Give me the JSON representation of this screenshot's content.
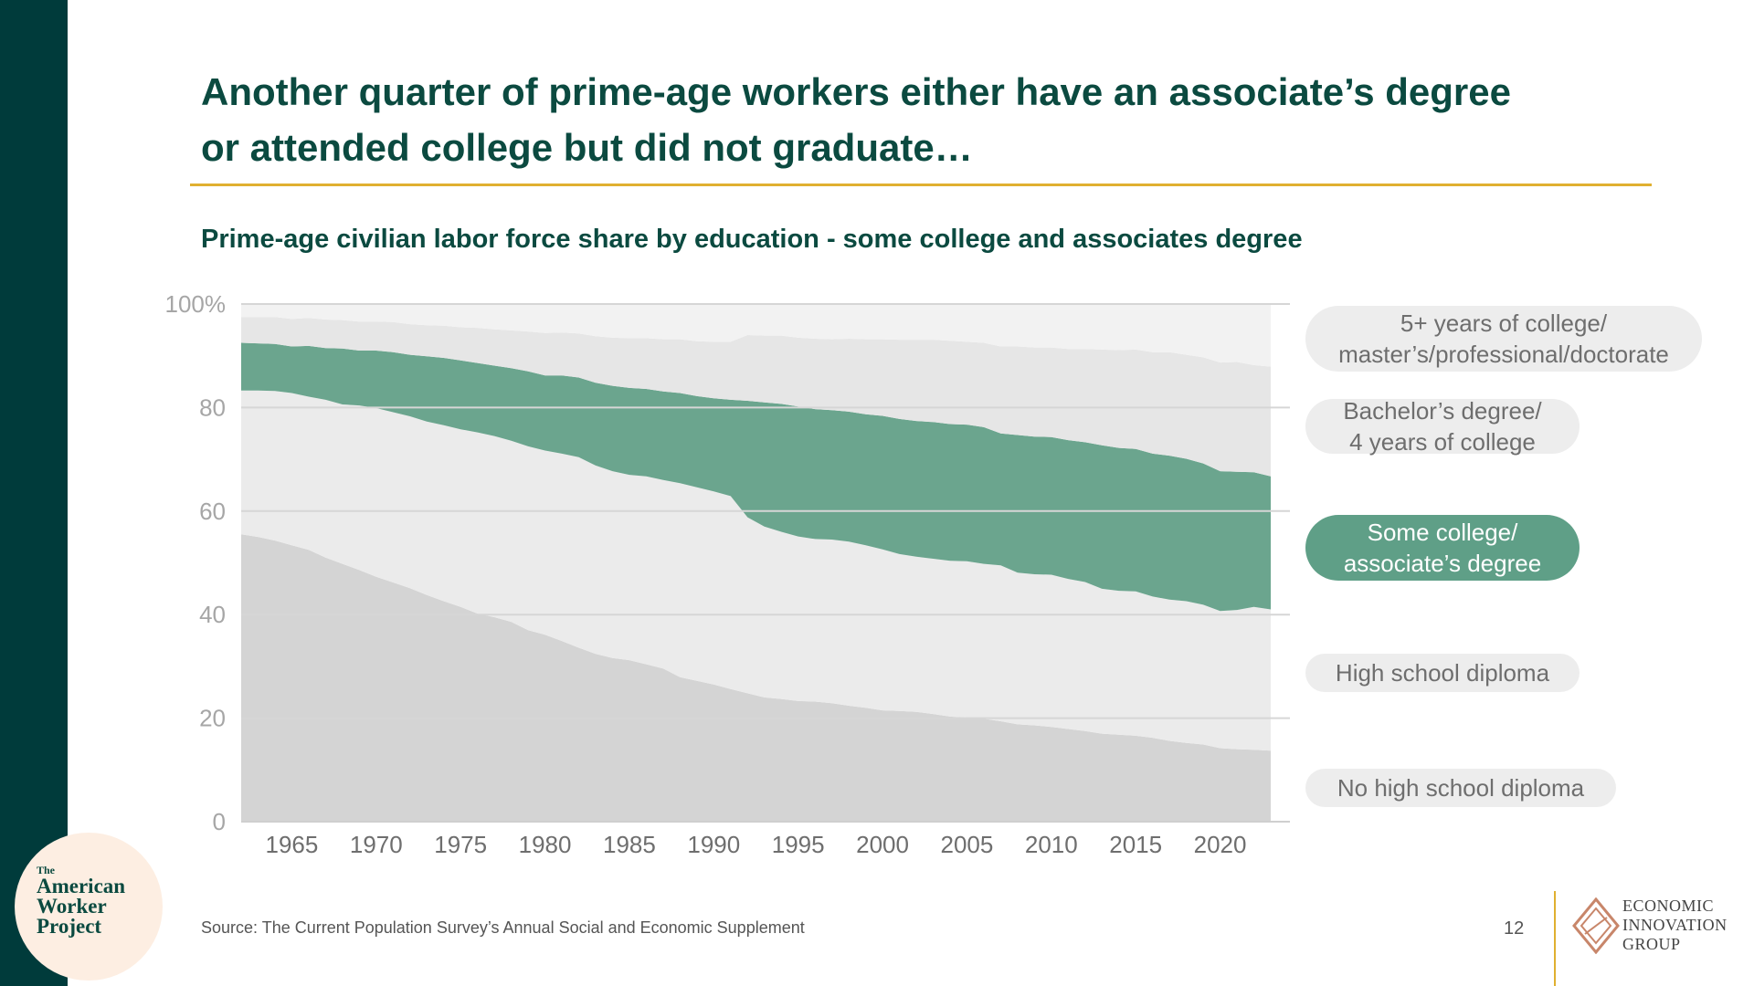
{
  "slide": {
    "title_line1": "Another quarter of prime-age workers either have an associate’s degree",
    "title_line2": "or attended college but did not graduate…",
    "subtitle": "Prime-age civilian labor force share by education - some college and associates degree",
    "source": "Source: The Current Population Survey’s Annual Social and Economic Supplement",
    "page_number": "12"
  },
  "logos": {
    "awp_the": "The",
    "awp_line1": "American",
    "awp_line2": "Worker",
    "awp_line3": "Project",
    "eig_line1": "ECONOMIC",
    "eig_line2": "INNOVATION",
    "eig_line3": "GROUP"
  },
  "legend": [
    {
      "line1": "5+ years of college/",
      "line2": "master’s/professional/doctorate"
    },
    {
      "line1": "Bachelor’s degree/",
      "line2": "4 years of college"
    },
    {
      "line1": "Some college/",
      "line2": "associate’s degree"
    },
    {
      "line1": "High school diploma",
      "line2": ""
    },
    {
      "line1": "No high school diploma",
      "line2": ""
    }
  ],
  "chart_data": {
    "type": "area",
    "stacked": true,
    "unit": "%",
    "title": "Prime-age civilian labor force share by education - some college and associates degree",
    "x": [
      1962,
      1963,
      1964,
      1965,
      1966,
      1967,
      1968,
      1969,
      1970,
      1971,
      1972,
      1973,
      1974,
      1975,
      1976,
      1977,
      1978,
      1979,
      1980,
      1981,
      1982,
      1983,
      1984,
      1985,
      1986,
      1987,
      1988,
      1989,
      1990,
      1991,
      1992,
      1993,
      1994,
      1995,
      1996,
      1997,
      1998,
      1999,
      2000,
      2001,
      2002,
      2003,
      2004,
      2005,
      2006,
      2007,
      2008,
      2009,
      2010,
      2011,
      2012,
      2013,
      2014,
      2015,
      2016,
      2017,
      2018,
      2019,
      2020,
      2021,
      2022,
      2023
    ],
    "series": [
      {
        "name": "No high school diploma",
        "values": [
          55.5,
          55.0,
          54.3,
          53.4,
          52.5,
          51.0,
          49.8,
          48.6,
          47.3,
          46.2,
          45.1,
          43.8,
          42.6,
          41.5,
          40.2,
          39.5,
          38.6,
          37.0,
          36.1,
          34.9,
          33.6,
          32.4,
          31.6,
          31.2,
          30.4,
          29.6,
          27.9,
          27.2,
          26.5,
          25.6,
          24.8,
          24.0,
          23.7,
          23.3,
          23.2,
          22.9,
          22.4,
          22.0,
          21.5,
          21.4,
          21.2,
          20.8,
          20.3,
          20.1,
          19.9,
          19.4,
          18.8,
          18.6,
          18.3,
          17.9,
          17.5,
          17.0,
          16.8,
          16.6,
          16.2,
          15.6,
          15.2,
          14.9,
          14.2,
          14.0,
          13.9,
          13.7
        ]
      },
      {
        "name": "High school diploma",
        "values": [
          27.8,
          28.3,
          28.9,
          29.4,
          29.6,
          30.5,
          30.8,
          31.8,
          32.6,
          32.9,
          33.2,
          33.5,
          34.0,
          34.3,
          35.0,
          35.0,
          35.0,
          35.5,
          35.6,
          36.2,
          36.8,
          36.4,
          36.1,
          35.8,
          36.3,
          36.4,
          37.5,
          37.4,
          37.3,
          37.3,
          34.0,
          33.0,
          32.3,
          31.8,
          31.4,
          31.6,
          31.7,
          31.4,
          31.1,
          30.3,
          30.0,
          30.0,
          30.1,
          30.2,
          29.9,
          30.1,
          29.3,
          29.2,
          29.4,
          29.0,
          28.8,
          28.0,
          27.8,
          27.9,
          27.3,
          27.3,
          27.4,
          27.0,
          26.5,
          26.9,
          27.6,
          27.3
        ]
      },
      {
        "name": "Some college/associate’s degree",
        "values": [
          9.2,
          9.1,
          9.1,
          9.0,
          9.8,
          10.0,
          10.8,
          10.6,
          11.1,
          11.6,
          11.9,
          12.6,
          13.0,
          13.3,
          13.4,
          13.6,
          14.0,
          14.5,
          14.5,
          15.1,
          15.4,
          16.0,
          16.5,
          16.8,
          16.9,
          17.1,
          17.4,
          17.6,
          18.0,
          18.6,
          22.5,
          24.0,
          24.7,
          25.1,
          25.1,
          25.0,
          25.1,
          25.3,
          25.8,
          26.1,
          26.2,
          26.4,
          26.4,
          26.4,
          26.4,
          25.5,
          26.6,
          26.6,
          26.6,
          26.8,
          27.0,
          27.7,
          27.6,
          27.5,
          27.6,
          27.8,
          27.5,
          27.3,
          27.0,
          26.7,
          26.0,
          25.7
        ]
      },
      {
        "name": "Bachelor’s degree/4 years of college",
        "values": [
          5.0,
          5.1,
          5.2,
          5.3,
          5.4,
          5.5,
          5.5,
          5.6,
          5.6,
          5.8,
          5.9,
          6.0,
          6.2,
          6.4,
          6.8,
          7.0,
          7.3,
          7.7,
          8.2,
          8.3,
          8.5,
          9.0,
          9.3,
          9.6,
          9.8,
          10.1,
          10.4,
          10.6,
          10.9,
          11.2,
          12.7,
          12.9,
          13.2,
          13.3,
          13.6,
          13.7,
          14.1,
          14.5,
          14.8,
          15.3,
          15.7,
          15.9,
          16.1,
          16.0,
          16.3,
          16.8,
          17.1,
          17.2,
          17.3,
          17.6,
          18.0,
          18.5,
          18.9,
          19.2,
          19.6,
          20.0,
          20.1,
          20.5,
          21.0,
          21.2,
          20.7,
          21.2
        ]
      },
      {
        "name": "5+ years of college/master’s/professional/doctorate",
        "values": [
          2.5,
          2.5,
          2.5,
          2.9,
          2.7,
          3.0,
          3.1,
          3.4,
          3.4,
          3.5,
          3.9,
          4.1,
          4.2,
          4.5,
          4.6,
          4.9,
          5.1,
          5.3,
          5.6,
          5.5,
          5.7,
          6.2,
          6.5,
          6.6,
          6.6,
          6.8,
          6.8,
          7.2,
          7.3,
          7.3,
          6.0,
          6.1,
          6.1,
          6.5,
          6.7,
          6.8,
          6.7,
          6.8,
          6.8,
          6.9,
          6.9,
          6.9,
          7.1,
          7.3,
          7.5,
          8.2,
          8.2,
          8.4,
          8.4,
          8.7,
          8.7,
          8.8,
          8.9,
          8.8,
          9.3,
          9.3,
          9.8,
          10.3,
          11.3,
          11.2,
          11.8,
          12.1
        ]
      }
    ],
    "colors": [
      "#d4d4d4",
      "#ebebeb",
      "#6ba58e",
      "#e6e6e6",
      "#f2f2f2"
    ],
    "highlight": "Some college/associate’s degree",
    "yticks": [
      0,
      20,
      40,
      60,
      80,
      100
    ],
    "ytick_labels": [
      "0",
      "20",
      "40",
      "60",
      "80",
      "100%"
    ],
    "xticks": [
      1965,
      1970,
      1975,
      1980,
      1985,
      1990,
      1995,
      2000,
      2005,
      2010,
      2015,
      2020
    ],
    "ylim": [
      0,
      100
    ],
    "xlim": [
      1962,
      2023
    ],
    "grid": "horizontal",
    "legend_position": "right"
  }
}
